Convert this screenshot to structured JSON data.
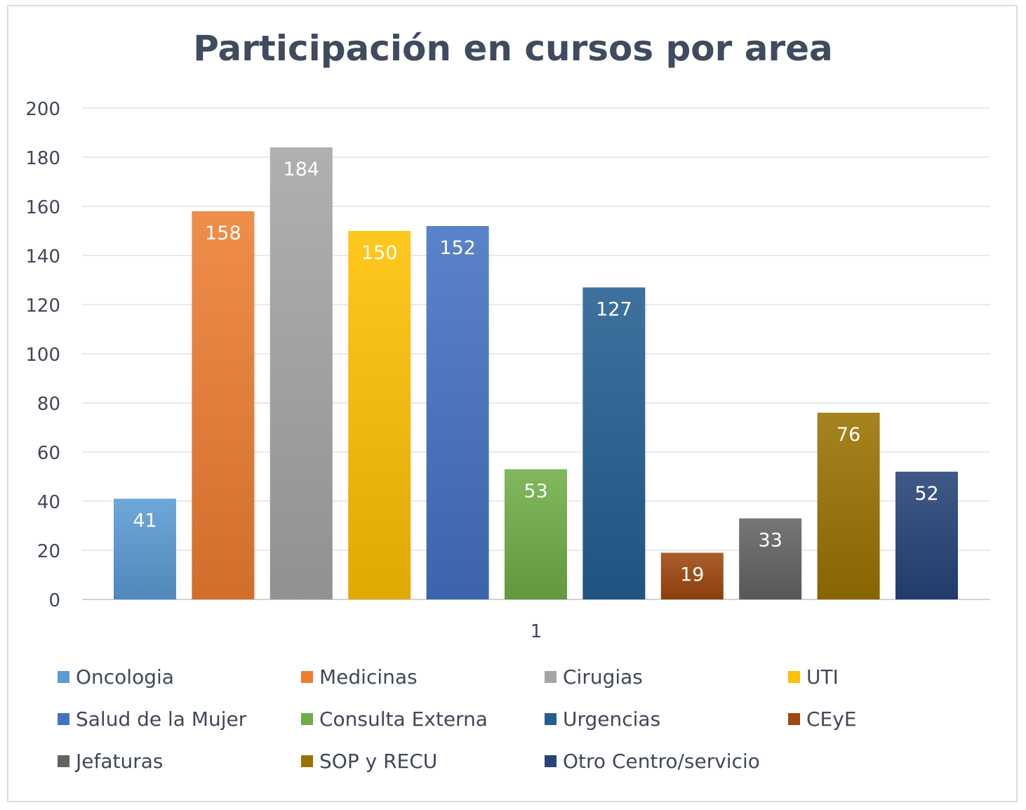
{
  "chart_data": {
    "type": "bar",
    "title": "Participación en cursos por area",
    "categories": [
      "1"
    ],
    "xlabel": "",
    "ylabel": "",
    "ylim": [
      0,
      200
    ],
    "yticks": [
      0,
      20,
      40,
      60,
      80,
      100,
      120,
      140,
      160,
      180,
      200
    ],
    "grid": true,
    "legend_position": "bottom",
    "series": [
      {
        "name": "Oncologia",
        "values": [
          41
        ],
        "color": "#5b9bd5"
      },
      {
        "name": "Medicinas",
        "values": [
          158
        ],
        "color": "#ed7d31"
      },
      {
        "name": "Cirugias",
        "values": [
          184
        ],
        "color": "#a5a5a5"
      },
      {
        "name": "UTI",
        "values": [
          150
        ],
        "color": "#ffc000"
      },
      {
        "name": "Salud de la Mujer",
        "values": [
          152
        ],
        "color": "#4472c4"
      },
      {
        "name": "Consulta Externa",
        "values": [
          53
        ],
        "color": "#70ad47"
      },
      {
        "name": "Urgencias",
        "values": [
          127
        ],
        "color": "#255e91"
      },
      {
        "name": "CEyE",
        "values": [
          19
        ],
        "color": "#9e480e"
      },
      {
        "name": "Jefaturas",
        "values": [
          33
        ],
        "color": "#636363"
      },
      {
        "name": "SOP y RECU",
        "values": [
          76
        ],
        "color": "#997300"
      },
      {
        "name": "Otro Centro/servicio",
        "values": [
          52
        ],
        "color": "#264478"
      }
    ]
  }
}
